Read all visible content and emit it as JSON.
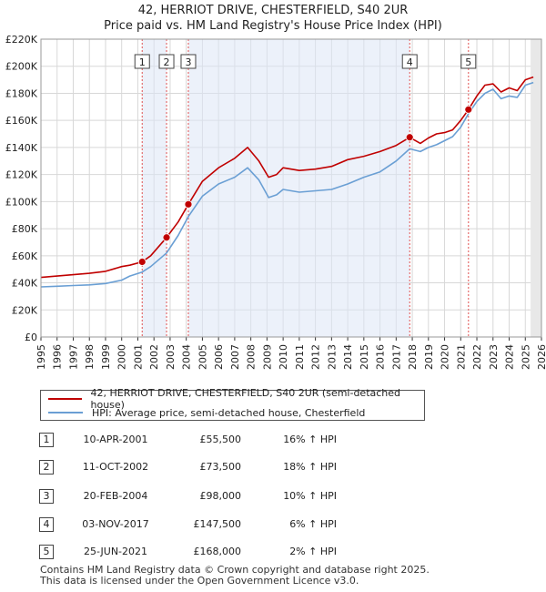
{
  "title": {
    "line1": "42, HERRIOT DRIVE, CHESTERFIELD, S40 2UR",
    "line2": "Price paid vs. HM Land Registry's House Price Index (HPI)"
  },
  "chart_data": {
    "type": "line",
    "ylim": [
      0,
      220000
    ],
    "xlim": [
      1995,
      2026
    ],
    "y_ticks": [
      {
        "value": 0,
        "label": "£0"
      },
      {
        "value": 20000,
        "label": "£20K"
      },
      {
        "value": 40000,
        "label": "£40K"
      },
      {
        "value": 60000,
        "label": "£60K"
      },
      {
        "value": 80000,
        "label": "£80K"
      },
      {
        "value": 100000,
        "label": "£100K"
      },
      {
        "value": 120000,
        "label": "£120K"
      },
      {
        "value": 140000,
        "label": "£140K"
      },
      {
        "value": 160000,
        "label": "£160K"
      },
      {
        "value": 180000,
        "label": "£180K"
      },
      {
        "value": 200000,
        "label": "£200K"
      },
      {
        "value": 220000,
        "label": "£220K"
      }
    ],
    "x_ticks": [
      "1995",
      "1996",
      "1997",
      "1998",
      "1999",
      "2000",
      "2001",
      "2002",
      "2003",
      "2004",
      "2005",
      "2006",
      "2007",
      "2008",
      "2009",
      "2010",
      "2011",
      "2012",
      "2013",
      "2014",
      "2015",
      "2016",
      "2017",
      "2018",
      "2019",
      "2020",
      "2021",
      "2022",
      "2023",
      "2024",
      "2025",
      "2026"
    ],
    "series": [
      {
        "name": "42, HERRIOT DRIVE, CHESTERFIELD, S40 2UR (semi-detached house)",
        "color": "#c00000",
        "x": [
          1995.0,
          1996.0,
          1997.0,
          1998.0,
          1999.0,
          2000.0,
          2000.5,
          2001.27,
          2001.8,
          2002.78,
          2003.5,
          2004.13,
          2005.0,
          2006.0,
          2007.0,
          2007.8,
          2008.5,
          2009.1,
          2009.6,
          2010.0,
          2011.0,
          2012.0,
          2013.0,
          2014.0,
          2015.0,
          2016.0,
          2017.0,
          2017.84,
          2018.5,
          2019.0,
          2019.5,
          2020.0,
          2020.5,
          2021.0,
          2021.48,
          2022.0,
          2022.5,
          2023.0,
          2023.5,
          2024.0,
          2024.5,
          2025.0,
          2025.5
        ],
        "values": [
          44000,
          45000,
          46000,
          47000,
          48500,
          52000,
          53000,
          55500,
          60000,
          73500,
          85000,
          98000,
          115000,
          125000,
          132000,
          140000,
          130000,
          118000,
          120000,
          125000,
          123000,
          124000,
          126000,
          131000,
          133500,
          137000,
          141500,
          147500,
          143000,
          147000,
          150000,
          151000,
          153000,
          160000,
          168000,
          178000,
          186000,
          187000,
          181000,
          184000,
          182000,
          190000,
          192000
        ]
      },
      {
        "name": "HPI: Average price, semi-detached house, Chesterfield",
        "color": "#6a9fd4",
        "x": [
          1995.0,
          1996.0,
          1997.0,
          1998.0,
          1999.0,
          2000.0,
          2000.5,
          2001.27,
          2001.8,
          2002.78,
          2003.5,
          2004.13,
          2005.0,
          2006.0,
          2007.0,
          2007.8,
          2008.5,
          2009.1,
          2009.6,
          2010.0,
          2011.0,
          2012.0,
          2013.0,
          2014.0,
          2015.0,
          2016.0,
          2017.0,
          2017.84,
          2018.5,
          2019.0,
          2019.5,
          2020.0,
          2020.5,
          2021.0,
          2021.48,
          2022.0,
          2022.5,
          2023.0,
          2023.5,
          2024.0,
          2024.5,
          2025.0,
          2025.5
        ],
        "values": [
          37000,
          37500,
          38000,
          38500,
          39500,
          42000,
          45000,
          48000,
          52000,
          62000,
          75000,
          89000,
          104000,
          113000,
          118000,
          125000,
          116000,
          103000,
          105000,
          109000,
          107000,
          108000,
          109000,
          113000,
          118000,
          122000,
          130000,
          139000,
          137000,
          140000,
          142000,
          145000,
          148000,
          155000,
          165000,
          174000,
          180000,
          183000,
          176000,
          178000,
          177000,
          186000,
          188000
        ]
      }
    ],
    "sales": [
      {
        "num": "1",
        "year": 2001.27,
        "price": 55500
      },
      {
        "num": "2",
        "year": 2002.78,
        "price": 73500
      },
      {
        "num": "3",
        "year": 2004.13,
        "price": 98000
      },
      {
        "num": "4",
        "year": 2017.84,
        "price": 147500
      },
      {
        "num": "5",
        "year": 2021.48,
        "price": 168000
      }
    ],
    "future_start_year": 2025.33
  },
  "legend": {
    "property": "42, HERRIOT DRIVE, CHESTERFIELD, S40 2UR (semi-detached house)",
    "hpi": "HPI: Average price, semi-detached house, Chesterfield"
  },
  "transactions": [
    {
      "num": "1",
      "date": "10-APR-2001",
      "price": "£55,500",
      "hpi": "16% ↑ HPI"
    },
    {
      "num": "2",
      "date": "11-OCT-2002",
      "price": "£73,500",
      "hpi": "18% ↑ HPI"
    },
    {
      "num": "3",
      "date": "20-FEB-2004",
      "price": "£98,000",
      "hpi": "10% ↑ HPI"
    },
    {
      "num": "4",
      "date": "03-NOV-2017",
      "price": "£147,500",
      "hpi": "6% ↑ HPI"
    },
    {
      "num": "5",
      "date": "25-JUN-2021",
      "price": "£168,000",
      "hpi": "2% ↑ HPI"
    }
  ],
  "footer": {
    "line1": "Contains HM Land Registry data © Crown copyright and database right 2025.",
    "line2": "This data is licensed under the Open Government Licence v3.0."
  }
}
